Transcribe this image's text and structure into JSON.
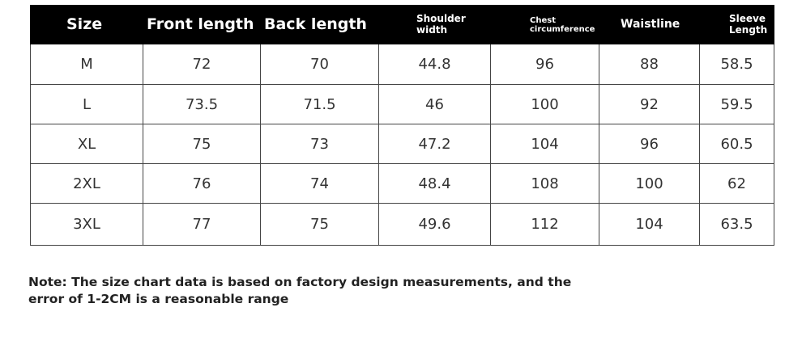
{
  "size_chart": {
    "headers": [
      {
        "key": "size",
        "line1": "Size",
        "line2": ""
      },
      {
        "key": "front_length",
        "line1": "Front length",
        "line2": ""
      },
      {
        "key": "back_length",
        "line1": "Back length",
        "line2": ""
      },
      {
        "key": "shoulder_width",
        "line1": "Shoulder",
        "line2": "width"
      },
      {
        "key": "chest_circumference",
        "line1": "Chest",
        "line2": "circumference"
      },
      {
        "key": "waistline",
        "line1": "Waistline",
        "line2": ""
      },
      {
        "key": "sleeve_length",
        "line1": "Sleeve",
        "line2": "Length"
      }
    ],
    "rows": [
      [
        "M",
        "72",
        "70",
        "44.8",
        "96",
        "88",
        "58.5"
      ],
      [
        "L",
        "73.5",
        "71.5",
        "46",
        "100",
        "92",
        "59.5"
      ],
      [
        "XL",
        "75",
        "73",
        "47.2",
        "104",
        "96",
        "60.5"
      ],
      [
        "2XL",
        "76",
        "74",
        "48.4",
        "108",
        "100",
        "62"
      ],
      [
        "3XL",
        "77",
        "75",
        "49.6",
        "112",
        "104",
        "63.5"
      ]
    ]
  },
  "note": {
    "line1": "Note: The size chart data is based on factory design measurements, and the",
    "line2": "error of 1-2CM is a reasonable range"
  },
  "colors": {
    "header_background": "#000000",
    "header_text": "#ffffff",
    "cell_text": "#333333",
    "border": "#444444"
  }
}
